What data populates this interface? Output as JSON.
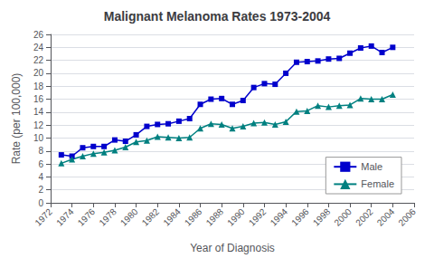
{
  "chart_data": {
    "type": "line",
    "title": "Malignant Melanoma Rates 1973-2004",
    "x_label": "Year of Diagnosis",
    "y_label": "Rate (per 100,000)",
    "x": [
      1973,
      1974,
      1975,
      1976,
      1977,
      1978,
      1979,
      1980,
      1981,
      1982,
      1983,
      1984,
      1985,
      1986,
      1987,
      1988,
      1989,
      1990,
      1991,
      1992,
      1993,
      1994,
      1995,
      1996,
      1997,
      1998,
      1999,
      2000,
      2001,
      2002,
      2003,
      2004
    ],
    "series": [
      {
        "name": "Male",
        "color": "#0000CC",
        "marker": "square",
        "values": [
          7.4,
          7.2,
          8.5,
          8.7,
          8.7,
          9.7,
          9.5,
          10.5,
          11.8,
          12.1,
          12.2,
          12.6,
          13.0,
          15.2,
          16.0,
          16.1,
          15.2,
          15.8,
          17.8,
          18.4,
          18.3,
          20.0,
          21.7,
          21.8,
          21.9,
          22.2,
          22.3,
          23.1,
          23.9,
          24.2,
          23.2,
          24.0
        ]
      },
      {
        "name": "Female",
        "color": "#008080",
        "marker": "triangle",
        "values": [
          6.1,
          6.7,
          7.2,
          7.6,
          7.8,
          8.1,
          8.6,
          9.4,
          9.6,
          10.2,
          10.1,
          10.0,
          10.1,
          11.5,
          12.2,
          12.1,
          11.5,
          11.8,
          12.3,
          12.4,
          12.1,
          12.5,
          14.1,
          14.2,
          15.0,
          14.8,
          15.0,
          15.1,
          16.1,
          16.0,
          16.0,
          16.7
        ]
      }
    ],
    "xlim": [
      1972,
      2006
    ],
    "xticks": [
      1972,
      1974,
      1976,
      1978,
      1980,
      1982,
      1984,
      1986,
      1988,
      1990,
      1992,
      1994,
      1996,
      1998,
      2000,
      2002,
      2004,
      2006
    ],
    "ylim": [
      0,
      26
    ],
    "yticks": [
      0,
      2,
      4,
      6,
      8,
      10,
      12,
      14,
      16,
      18,
      20,
      22,
      24,
      26
    ],
    "grid": "y",
    "legend": "lower right"
  }
}
